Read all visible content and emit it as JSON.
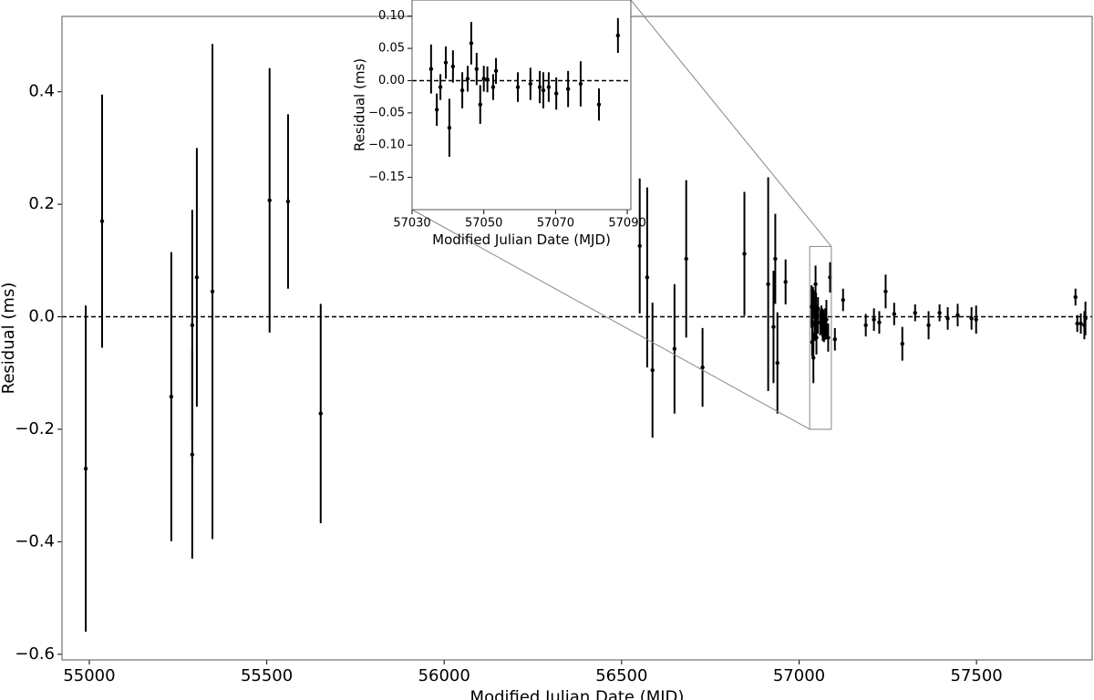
{
  "chart_data": [
    {
      "type": "errorbar",
      "xlabel": "Modified Julian Date (MJD)",
      "ylabel": "Residual (ms)",
      "color": "#000000",
      "hline": 0,
      "xlim": [
        54923,
        57826
      ],
      "ylim": [
        -0.61,
        0.534
      ],
      "xticks": [
        55000,
        55500,
        56000,
        56500,
        57000,
        57500
      ],
      "yticks": [
        {
          "value": -0.6,
          "label": "−0.6"
        },
        {
          "value": -0.4,
          "label": "−0.4"
        },
        {
          "value": -0.2,
          "label": "−0.2"
        },
        {
          "value": 0,
          "label": "0.0"
        },
        0.2,
        0.4
      ],
      "x": [
        54990,
        55036,
        55231,
        55290,
        55290,
        55303,
        55347,
        55508,
        55560,
        55652,
        56551,
        56572,
        56587,
        56649,
        56682,
        56728,
        56846,
        56913,
        56928,
        56933,
        56939,
        56962,
        57035.3,
        57036.9,
        57037.9,
        57039.4,
        57040.4,
        57041.4,
        57044,
        57045.5,
        57046.5,
        57048,
        57049,
        57050,
        57051,
        57052.6,
        57053.4,
        57059.5,
        57063,
        57065.6,
        57066.6,
        57068.1,
        57070.2,
        57073.5,
        57077,
        57082.1,
        57087.4,
        57101,
        57124,
        57188,
        57211,
        57226,
        57244,
        57268,
        57291,
        57327,
        57365,
        57396,
        57419,
        57447,
        57486,
        57499,
        57779,
        57784,
        57794,
        57804,
        57807
      ],
      "values": [
        -0.27,
        0.17,
        -0.142,
        -0.245,
        -0.015,
        0.07,
        0.045,
        0.207,
        0.205,
        -0.172,
        0.126,
        0.07,
        -0.095,
        -0.057,
        0.103,
        -0.09,
        0.112,
        0.058,
        -0.018,
        0.103,
        -0.082,
        0.062,
        0.018,
        -0.045,
        -0.01,
        0.028,
        -0.073,
        0.022,
        -0.015,
        0.003,
        0.058,
        0.018,
        -0.037,
        0.003,
        0.002,
        -0.01,
        0.015,
        -0.01,
        -0.005,
        -0.01,
        -0.015,
        -0.01,
        -0.02,
        -0.013,
        -0.005,
        -0.037,
        0.07,
        -0.04,
        0.03,
        -0.015,
        -0.005,
        -0.01,
        0.045,
        0.005,
        -0.048,
        0.007,
        -0.015,
        0.007,
        -0.003,
        0.003,
        -0.003,
        -0.005,
        0.035,
        -0.012,
        -0.012,
        -0.015,
        -0.003
      ],
      "errors": [
        0.29,
        0.225,
        0.257,
        0.185,
        0.205,
        0.23,
        0.44,
        0.235,
        0.155,
        0.195,
        0.12,
        0.16,
        0.12,
        0.115,
        0.14,
        0.07,
        0.11,
        0.19,
        0.1,
        0.08,
        0.09,
        0.04,
        0.038,
        0.025,
        0.02,
        0.025,
        0.045,
        0.025,
        0.028,
        0.02,
        0.033,
        0.025,
        0.03,
        0.02,
        0.02,
        0.02,
        0.02,
        0.023,
        0.025,
        0.025,
        0.028,
        0.023,
        0.025,
        0.028,
        0.035,
        0.025,
        0.027,
        0.02,
        0.02,
        0.02,
        0.02,
        0.02,
        0.03,
        0.02,
        0.03,
        0.015,
        0.025,
        0.015,
        0.02,
        0.02,
        0.02,
        0.025,
        0.015,
        0.015,
        0.018,
        0.025,
        0.03
      ]
    },
    {
      "type": "errorbar",
      "xlabel": "Modified Julian Date (MJD)",
      "ylabel": "Residual (ms)",
      "color": "#000000",
      "hline": 0,
      "xlim": [
        57030,
        57091
      ],
      "ylim": [
        -0.2,
        0.125
      ],
      "xticks": [
        57030,
        57050,
        57070,
        57090
      ],
      "yticks": [
        {
          "value": -0.15,
          "label": "−0.15"
        },
        {
          "value": -0.1,
          "label": "−0.10"
        },
        {
          "value": -0.05,
          "label": "−0.05"
        },
        {
          "value": 0,
          "label": "0.00"
        },
        {
          "value": 0.05,
          "label": "0.05"
        },
        {
          "value": 0.1,
          "label": "0.10"
        }
      ],
      "x": [
        57035.3,
        57036.9,
        57037.9,
        57039.4,
        57040.4,
        57041.4,
        57044,
        57045.5,
        57046.5,
        57048,
        57049,
        57050,
        57051,
        57052.6,
        57053.4,
        57059.5,
        57063,
        57065.6,
        57066.6,
        57068.1,
        57070.2,
        57073.5,
        57077,
        57082.1,
        57087.4
      ],
      "values": [
        0.018,
        -0.045,
        -0.01,
        0.028,
        -0.073,
        0.022,
        -0.015,
        0.003,
        0.058,
        0.018,
        -0.037,
        0.003,
        0.002,
        -0.01,
        0.015,
        -0.01,
        -0.005,
        -0.01,
        -0.015,
        -0.01,
        -0.02,
        -0.013,
        -0.005,
        -0.037,
        0.07
      ],
      "errors": [
        0.038,
        0.025,
        0.02,
        0.025,
        0.045,
        0.025,
        0.028,
        0.02,
        0.033,
        0.025,
        0.03,
        0.02,
        0.02,
        0.02,
        0.02,
        0.023,
        0.025,
        0.025,
        0.028,
        0.023,
        0.025,
        0.028,
        0.035,
        0.025,
        0.027
      ]
    }
  ]
}
